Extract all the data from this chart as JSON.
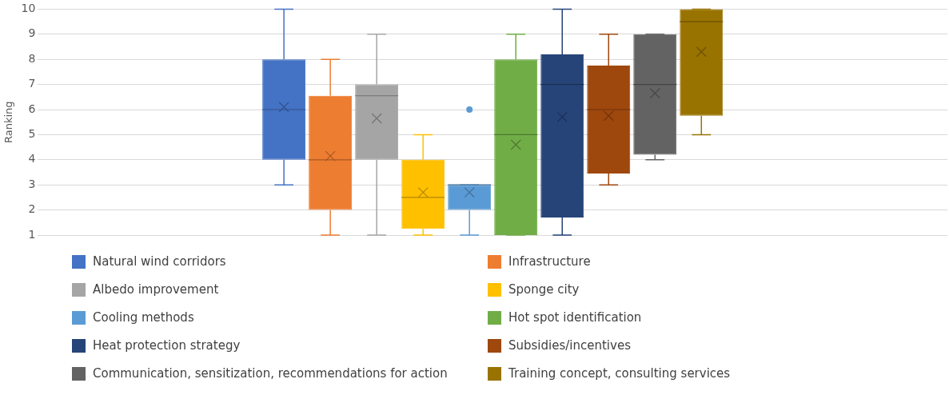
{
  "chart_data": {
    "type": "box",
    "ylabel": "Ranking",
    "categories": [
      null
    ],
    "ylim": [
      1,
      10
    ],
    "yticks": [
      1,
      2,
      3,
      4,
      5,
      6,
      7,
      8,
      9,
      10
    ],
    "grid": "y",
    "legend": "bottom",
    "tick_labels": "y",
    "series": [
      {
        "name": "Natural wind corridors",
        "color": "#4472c4",
        "boxes": [
          {
            "low": 3,
            "q1": 4,
            "median": 6,
            "q3": 8,
            "high": 10,
            "mean": 6.1
          }
        ]
      },
      {
        "name": "Infrastructure",
        "color": "#ed7d31",
        "boxes": [
          {
            "low": 1,
            "q1": 2,
            "median": 4,
            "q3": 6.55,
            "high": 8,
            "mean": 4.15
          }
        ]
      },
      {
        "name": "Albedo improvement",
        "color": "#a5a5a5",
        "boxes": [
          {
            "low": 1,
            "q1": 4,
            "median": 6.55,
            "q3": 7,
            "high": 9,
            "mean": 5.65
          }
        ]
      },
      {
        "name": "Sponge city",
        "color": "#ffc000",
        "boxes": [
          {
            "low": 1,
            "q1": 1.25,
            "median": 2.5,
            "q3": 4,
            "high": 5,
            "mean": 2.7
          }
        ]
      },
      {
        "name": "Cooling methods",
        "color": "#5b9bd5",
        "boxes": [
          {
            "low": 1,
            "q1": 2,
            "median": 3,
            "q3": 3,
            "high": 3,
            "mean": 2.7,
            "outliers": [
              6
            ]
          }
        ]
      },
      {
        "name": "Hot spot identification",
        "color": "#70ad47",
        "boxes": [
          {
            "low": 1,
            "q1": 1,
            "median": 5,
            "q3": 8,
            "high": 9,
            "mean": 4.6
          }
        ]
      },
      {
        "name": "Heat protection strategy",
        "color": "#264478",
        "boxes": [
          {
            "low": 1,
            "q1": 1.7,
            "median": 7,
            "q3": 8.2,
            "high": 10,
            "mean": 5.7
          }
        ]
      },
      {
        "name": "Subsidies/incentives",
        "color": "#9e480e",
        "boxes": [
          {
            "low": 3,
            "q1": 3.45,
            "median": 6,
            "q3": 7.75,
            "high": 9,
            "mean": 5.75
          }
        ]
      },
      {
        "name": "Communication, sensitization, recommendations for action",
        "color": "#636363",
        "boxes": [
          {
            "low": 4,
            "q1": 4.2,
            "median": 7,
            "q3": 9,
            "high": 9,
            "mean": 6.65
          }
        ]
      },
      {
        "name": "Training concept, consulting services",
        "color": "#997300",
        "boxes": [
          {
            "low": 5,
            "q1": 5.75,
            "median": 9.5,
            "q3": 10,
            "high": 10,
            "mean": 8.3
          }
        ]
      }
    ]
  }
}
